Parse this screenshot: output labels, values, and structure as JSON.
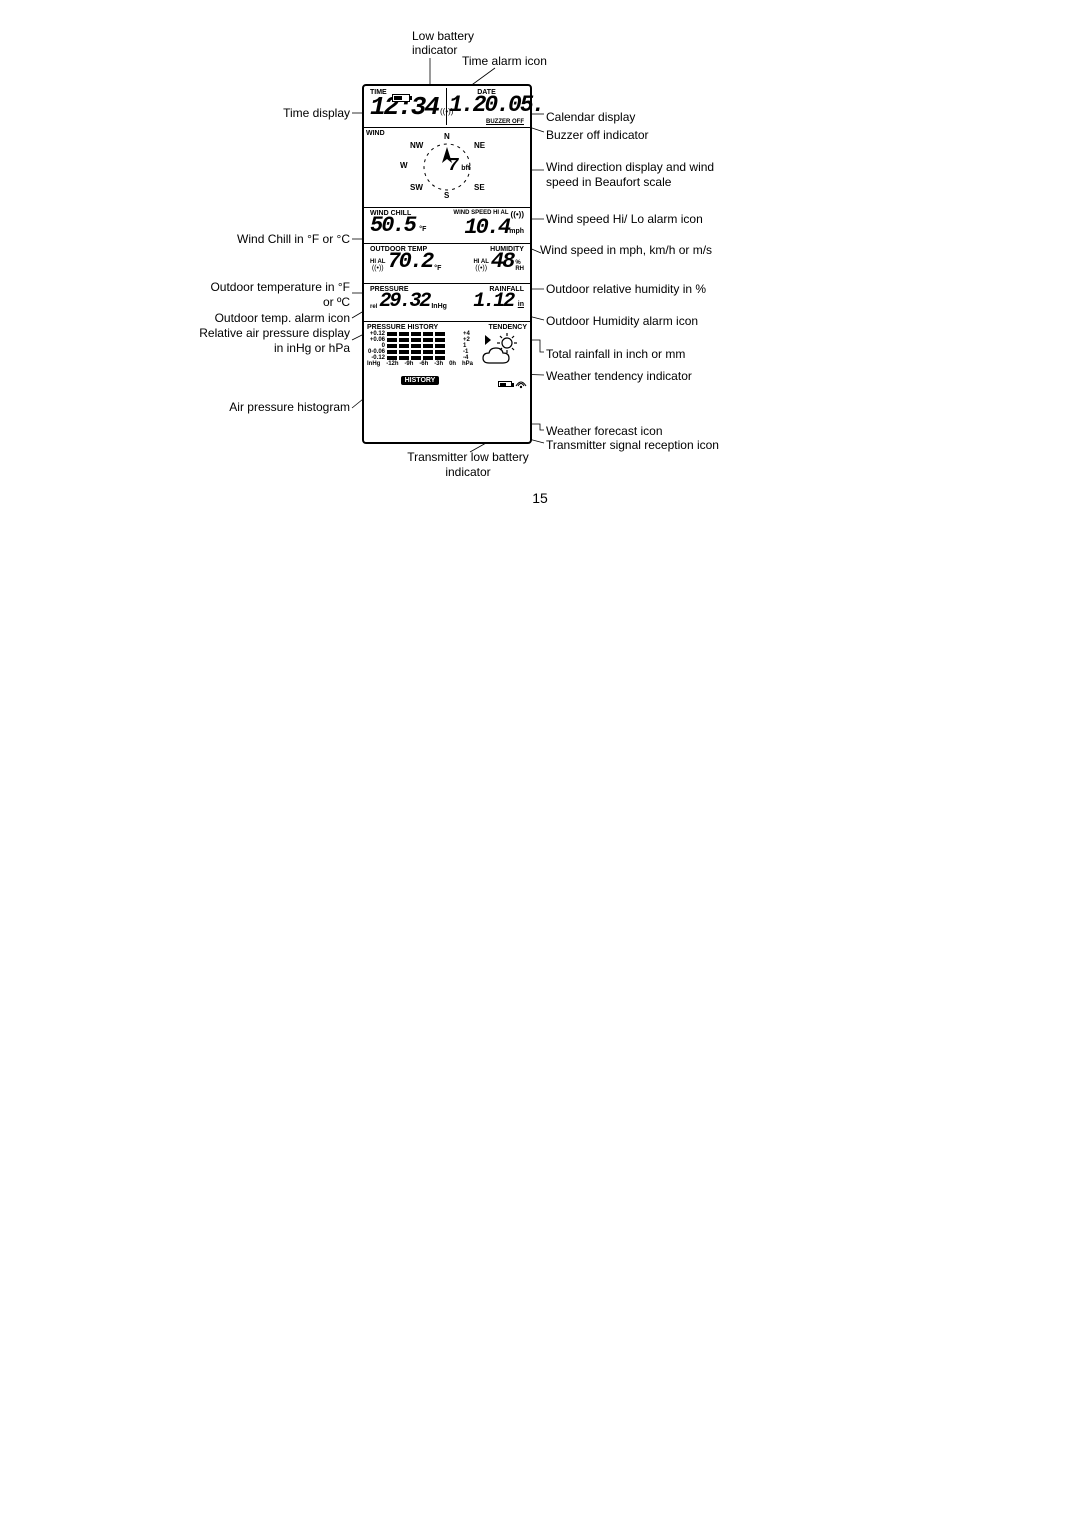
{
  "page_number": "15",
  "top_annotations": {
    "low_batt": "Low battery indicator",
    "time_alarm": "Time alarm icon"
  },
  "left_annotations": {
    "time_display": "Time display",
    "wind_chill": "Wind Chill in °F or °C",
    "outdoor_temp": "Outdoor temperature in °F or ºC",
    "outdoor_temp_alarm": "Outdoor temp. alarm icon",
    "pressure": "Relative air pressure display in inHg or hPa",
    "histogram": "Air pressure histogram"
  },
  "right_annotations": {
    "calendar": "Calendar display",
    "buzzer_off": "Buzzer off indicator",
    "wind_dir": "Wind direction display and wind speed in Beaufort scale",
    "wind_alarm": "Wind speed Hi/ Lo alarm icon",
    "wind_speed": "Wind speed in mph, km/h or m/s",
    "humidity": "Outdoor relative humidity in %",
    "humidity_alarm": "Outdoor Humidity alarm icon",
    "rainfall": "Total rainfall in inch or mm",
    "tendency": "Weather tendency indicator",
    "forecast": "Weather forecast icon",
    "signal": "Transmitter signal reception icon"
  },
  "bottom_annotations": {
    "tx_low_batt": "Transmitter low battery indicator"
  },
  "lcd": {
    "row1": {
      "time_label": "TIME",
      "time_value": "12:34",
      "date_label": "DATE",
      "date_value": "1.20.05.",
      "buzzer_off": "BUZZER OFF"
    },
    "row2": {
      "wind_label": "WIND",
      "bft_value": "7",
      "bft_unit": "bft",
      "compass": {
        "N": "N",
        "NE": "NE",
        "E": "E",
        "SE": "SE",
        "S": "S",
        "SW": "SW",
        "W": "W",
        "NW": "NW"
      }
    },
    "row3": {
      "windchill_label": "WIND CHILL",
      "windchill_value": "50.5",
      "windchill_unit": "°F",
      "windspeed_label": "WIND SPEED HI AL",
      "windspeed_value": "10.4",
      "windspeed_unit": "mph"
    },
    "row4": {
      "temp_label": "OUTDOOR  TEMP",
      "temp_hial": "HI AL",
      "temp_value": "70.2",
      "temp_unit": "°F",
      "hum_label": "HUMIDITY",
      "hum_hial": "HI AL",
      "hum_value": "48",
      "hum_unit_pct": "%",
      "hum_unit_rh": "RH"
    },
    "row5": {
      "pressure_label": "PRESSURE",
      "pressure_rel": "rel",
      "pressure_value": "29.32",
      "pressure_unit": "InHg",
      "rain_label": "RAINFALL",
      "rain_value": "1.12",
      "rain_unit": "in"
    },
    "row6": {
      "hist_label": "PRESSURE HISTORY",
      "tend_label": "TENDENCY",
      "hist_y_labels": [
        "+0.12",
        "+0.06",
        "0",
        "0-0.06",
        "-0.12"
      ],
      "hist_y_right": [
        "+4",
        "+2",
        "1",
        "-1",
        "-4"
      ],
      "hist_x_labels": [
        "InHg",
        "-12h",
        "-9h",
        "-6h",
        "-3h",
        "0h",
        "hPa"
      ],
      "history_btn": "HISTORY",
      "hist_bars": [
        [
          true,
          true,
          true,
          true,
          true
        ],
        [
          true,
          true,
          true,
          true,
          true
        ],
        [
          true,
          true,
          true,
          true,
          true
        ],
        [
          true,
          true,
          true,
          true,
          true
        ],
        [
          true,
          true,
          true,
          true,
          true
        ]
      ]
    }
  },
  "colors": {
    "fg": "#000000",
    "bg": "#ffffff"
  }
}
